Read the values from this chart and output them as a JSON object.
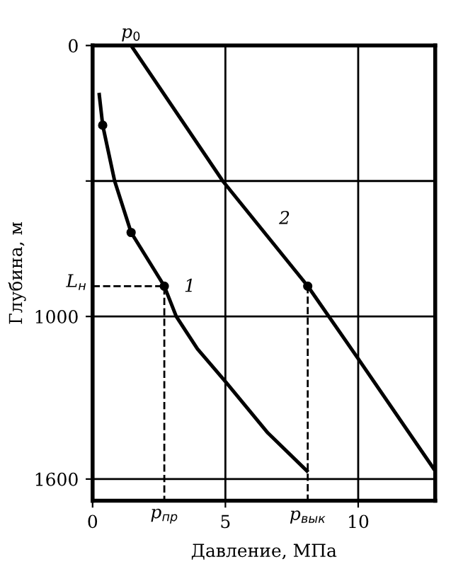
{
  "chart_data": {
    "type": "line",
    "xlabel": "Давление, МПа",
    "ylabel": "Глубина, м",
    "xlim": [
      0,
      12.9
    ],
    "ylim": [
      1680,
      0
    ],
    "xticks": [
      0,
      5,
      10
    ],
    "yticks": [
      0,
      {
        "value": 500,
        "label": null
      },
      1000,
      1600
    ],
    "grid": true,
    "line_style": "solid",
    "series": [
      {
        "name": "1",
        "color": "#000000",
        "x": [
          0.25,
          0.38,
          0.83,
          1.45,
          2.7,
          3.15,
          3.95,
          5,
          6.6,
          8.07
        ],
        "values": [
          181,
          294,
          500,
          690,
          888,
          1000,
          1120,
          1240,
          1430,
          1570
        ]
      },
      {
        "name": "2",
        "color": "#000000",
        "x": [
          1.45,
          4.9,
          8.1,
          10,
          12.9
        ],
        "values": [
          0,
          500,
          888,
          1156,
          1570
        ]
      },
      {
        "type": "scatter",
        "color": "#000000",
        "x": [
          0.38,
          1.45,
          2.7,
          8.1
        ],
        "values": [
          294,
          690,
          888,
          888
        ],
        "marker": "circle"
      },
      {
        "color": "#000000",
        "x": [
          0,
          2.7,
          2.7
        ],
        "values": [
          888,
          888,
          1680
        ],
        "line_style": "dashed"
      },
      {
        "color": "#000000",
        "x": [
          8.1,
          8.1
        ],
        "values": [
          888,
          1680
        ],
        "line_style": "dashed"
      }
    ],
    "annotations": [
      {
        "text": "p$_{0}$",
        "x": 1.45,
        "y": 0
      },
      {
        "text": "L$_{н}$",
        "x": 0,
        "y": 888
      },
      {
        "text": "p$_{пр}$",
        "x": 2.7,
        "y": 1680
      },
      {
        "text": "p$_{вык}$",
        "x": 8.1,
        "y": 1680
      }
    ]
  }
}
